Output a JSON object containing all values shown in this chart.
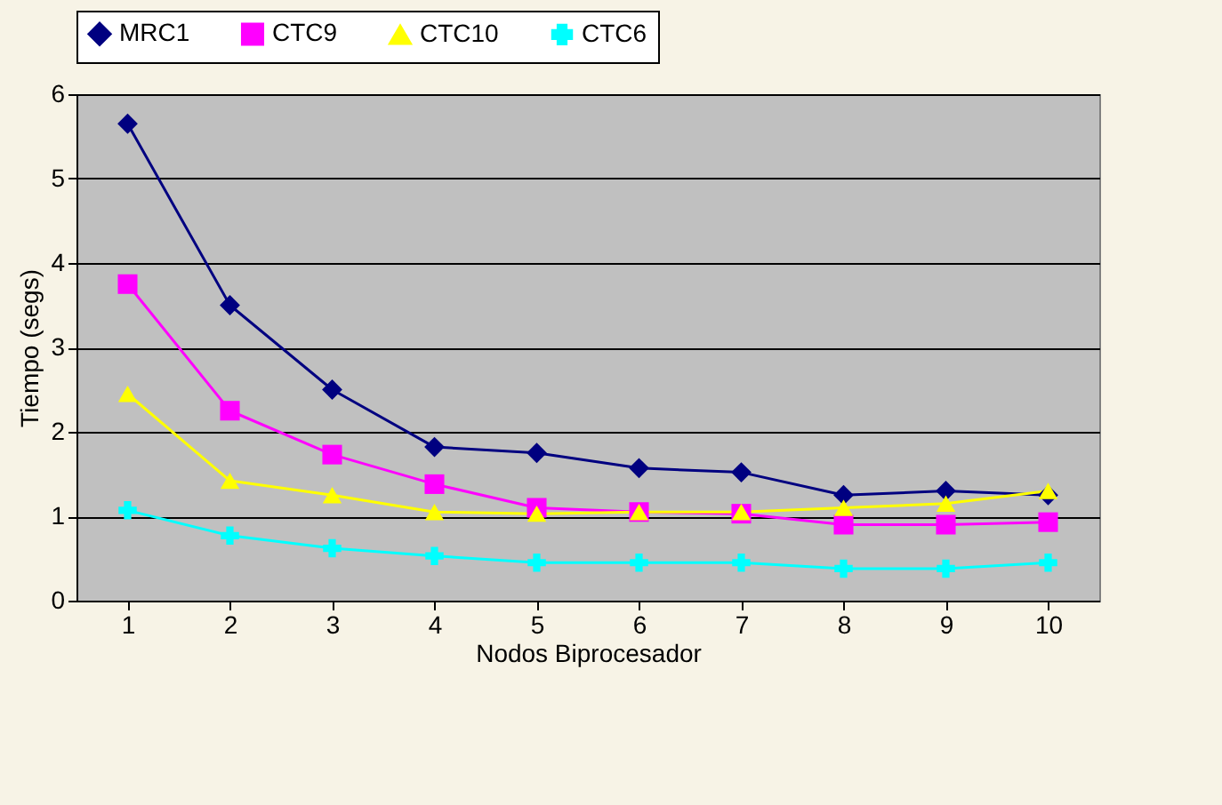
{
  "chart_data": {
    "type": "line",
    "xlabel": "Nodos Biprocesador",
    "ylabel": "Tiempo (segs)",
    "categories": [
      "1",
      "2",
      "3",
      "4",
      "5",
      "6",
      "7",
      "8",
      "9",
      "10"
    ],
    "series": [
      {
        "name": "MRC1",
        "color": "#000080",
        "marker": "diamond",
        "values": [
          5.65,
          3.5,
          2.5,
          1.82,
          1.75,
          1.57,
          1.52,
          1.25,
          1.3,
          1.25
        ]
      },
      {
        "name": "CTC9",
        "color": "#ff00ff",
        "marker": "square",
        "values": [
          3.75,
          2.25,
          1.73,
          1.38,
          1.1,
          1.05,
          1.03,
          0.9,
          0.9,
          0.93
        ]
      },
      {
        "name": "CTC10",
        "color": "#ffff00",
        "marker": "triangle",
        "values": [
          2.45,
          1.42,
          1.25,
          1.05,
          1.03,
          1.05,
          1.05,
          1.1,
          1.15,
          1.3
        ]
      },
      {
        "name": "CTC6",
        "color": "#00ffff",
        "marker": "cross",
        "values": [
          1.07,
          0.77,
          0.62,
          0.53,
          0.45,
          0.45,
          0.45,
          0.38,
          0.38,
          0.45
        ]
      }
    ],
    "ylim": [
      0,
      6
    ],
    "yticks": [
      0,
      1,
      2,
      3,
      4,
      5,
      6
    ],
    "grid": "y",
    "legend": "top",
    "line_style": "solid"
  }
}
